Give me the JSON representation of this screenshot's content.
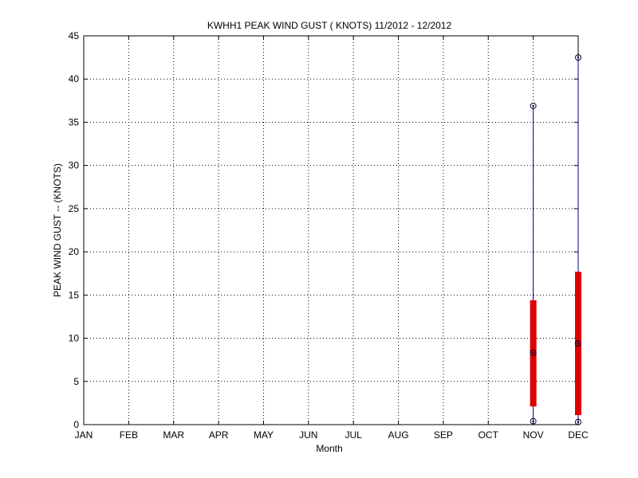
{
  "chart_data": {
    "type": "box",
    "title": "KWHH1  PEAK WIND GUST ( KNOTS) 11/2012 - 12/2012",
    "xlabel": "Month",
    "ylabel": "PEAK WIND GUST -- (KNOTS)",
    "categories": [
      "JAN",
      "FEB",
      "MAR",
      "APR",
      "MAY",
      "JUN",
      "JUL",
      "AUG",
      "SEP",
      "OCT",
      "NOV",
      "DEC"
    ],
    "ylim": [
      0,
      45
    ],
    "yticks": [
      0,
      5,
      10,
      15,
      20,
      25,
      30,
      35,
      40,
      45
    ],
    "grid": true,
    "boxes": [
      {
        "category": "NOV",
        "min": 0.4,
        "q1": 2.1,
        "median": 8.3,
        "q3": 14.4,
        "max": 36.9
      },
      {
        "category": "DEC",
        "min": 0.3,
        "q1": 1.1,
        "median": 9.4,
        "q3": 17.7,
        "max": 42.5
      }
    ],
    "colors": {
      "whisker": "#00008b",
      "box": "#e00000",
      "marker": "#000033",
      "grid": "#000000"
    }
  }
}
